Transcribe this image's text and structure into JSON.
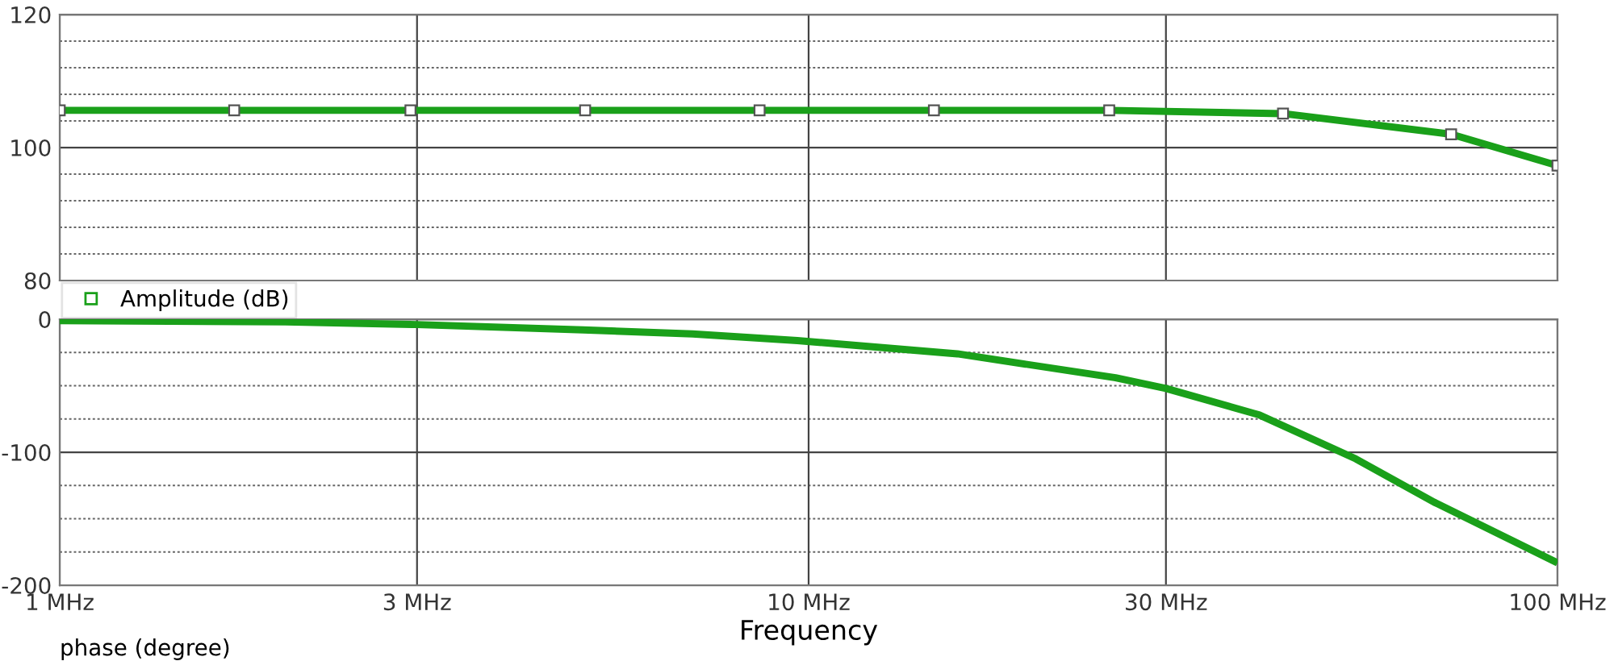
{
  "chart_data": [
    {
      "type": "line",
      "x": [
        1,
        1.71,
        2.94,
        5.03,
        8.6,
        14.7,
        25.2,
        43,
        72.1,
        100
      ],
      "series": [
        {
          "name": "Amplitude (dB)",
          "color": "#1aa01a",
          "values": [
            105.6,
            105.6,
            105.6,
            105.6,
            105.6,
            105.6,
            105.6,
            105.1,
            102,
            97.3
          ]
        }
      ],
      "log": "x",
      "xlim": [
        1,
        100
      ],
      "xticks": [
        {
          "value": 1,
          "label": null
        },
        {
          "value": 3,
          "label": null
        },
        {
          "value": 10,
          "label": null
        },
        {
          "value": 30,
          "label": null
        },
        {
          "value": 100,
          "label": null
        }
      ],
      "ylim": [
        80,
        120
      ],
      "yticks": [
        80,
        {
          "value": 84,
          "label": null
        },
        {
          "value": 88,
          "label": null
        },
        {
          "value": 92,
          "label": null
        },
        {
          "value": 96,
          "label": null
        },
        100,
        {
          "value": 104,
          "label": null
        },
        {
          "value": 108,
          "label": null
        },
        {
          "value": 112,
          "label": null
        },
        {
          "value": 116,
          "label": null
        },
        120
      ],
      "grid": true,
      "marker": "square",
      "line_style": "solid",
      "legend": "bottom left",
      "tick_labels": "y"
    },
    {
      "type": "line",
      "x": [
        1,
        2,
        3,
        5,
        7,
        9.66,
        15.8,
        25.7,
        30,
        40,
        53.8,
        68.7,
        99
      ],
      "series": [
        {
          "color": "#1aa01a",
          "values": [
            -1,
            -2,
            -4,
            -8,
            -11,
            -16,
            -26,
            -44,
            -52,
            -72,
            -105,
            -138,
            -182
          ]
        }
      ],
      "log": "x",
      "xlim": [
        1,
        100
      ],
      "xticks": [
        {
          "value": 1,
          "label": "1 MHz"
        },
        {
          "value": 3,
          "label": "3 MHz"
        },
        {
          "value": 10,
          "label": "10 MHz"
        },
        {
          "value": 30,
          "label": "30 MHz"
        },
        {
          "value": 100,
          "label": "100 MHz"
        }
      ],
      "ylim": [
        -200,
        0
      ],
      "yticks": [
        -200,
        {
          "value": -175,
          "label": null
        },
        {
          "value": -150,
          "label": null
        },
        {
          "value": -125,
          "label": null
        },
        -100,
        {
          "value": -75,
          "label": null
        },
        {
          "value": -50,
          "label": null
        },
        {
          "value": -25,
          "label": null
        },
        0
      ],
      "grid": true,
      "marker": "none",
      "line_style": "solid",
      "xlabel": "Frequency",
      "annotations": [
        "phase (degree)"
      ]
    }
  ]
}
